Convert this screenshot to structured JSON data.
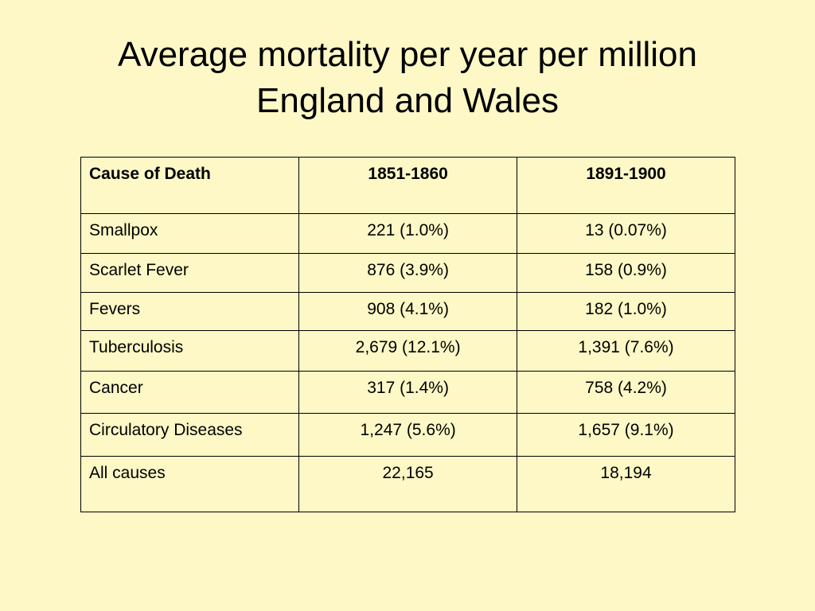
{
  "title": {
    "line1": "Average mortality per year per million",
    "line2": "England and Wales"
  },
  "table": {
    "headers": [
      "Cause of Death",
      "1851-1860",
      "1891-1900"
    ],
    "rows": [
      [
        "Smallpox",
        "221 (1.0%)",
        "13 (0.07%)"
      ],
      [
        "Scarlet Fever",
        "876 (3.9%)",
        "158 (0.9%)"
      ],
      [
        "Fevers",
        "908 (4.1%)",
        "182 (1.0%)"
      ],
      [
        "Tuberculosis",
        "2,679 (12.1%)",
        "1,391 (7.6%)"
      ],
      [
        "Cancer",
        "317 (1.4%)",
        "758 (4.2%)"
      ],
      [
        "Circulatory Diseases",
        "1,247 (5.6%)",
        "1,657 (9.1%)"
      ],
      [
        "All causes",
        "22,165",
        "18,194"
      ]
    ]
  },
  "colors": {
    "background": "#fdf8c6",
    "border": "#000000",
    "text": "#000000"
  }
}
